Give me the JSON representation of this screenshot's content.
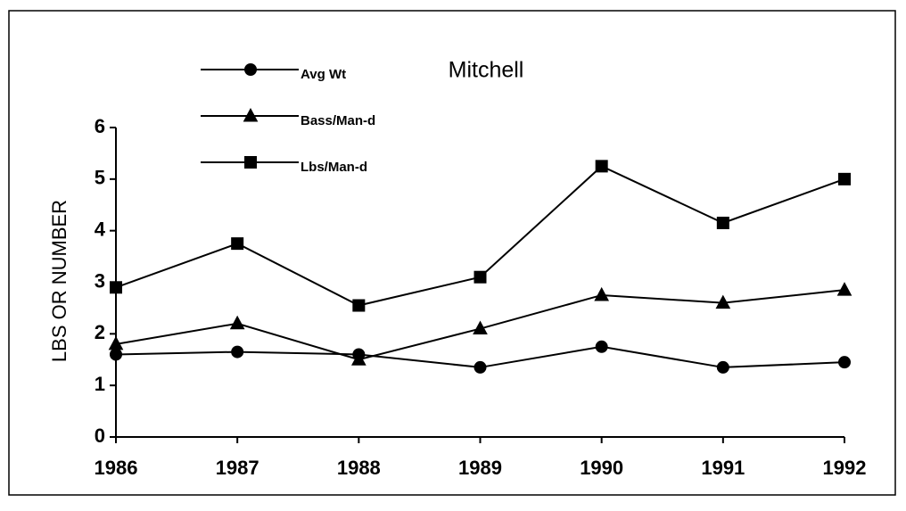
{
  "chart_data": {
    "type": "line",
    "title": "Mitchell",
    "y_label": "LBS OR NUMBER",
    "categories": [
      "1986",
      "1987",
      "1988",
      "1989",
      "1990",
      "1991",
      "1992"
    ],
    "series": [
      {
        "name": "Avg Wt",
        "color": "#000000",
        "marker": "circle",
        "values": [
          1.6,
          1.65,
          1.6,
          1.35,
          1.75,
          1.35,
          1.45
        ]
      },
      {
        "name": "Bass/Man-d",
        "color": "#000000",
        "marker": "triangle",
        "values": [
          1.8,
          2.2,
          1.5,
          2.1,
          2.75,
          2.6,
          2.85
        ]
      },
      {
        "name": "Lbs/Man-d",
        "color": "#000000",
        "marker": "square",
        "values": [
          2.9,
          3.75,
          2.55,
          3.1,
          5.25,
          4.15,
          5.0
        ]
      }
    ],
    "ylim": [
      0,
      6
    ],
    "yticks": [
      0,
      1,
      2,
      3,
      4,
      5,
      6
    ],
    "grid": false
  }
}
